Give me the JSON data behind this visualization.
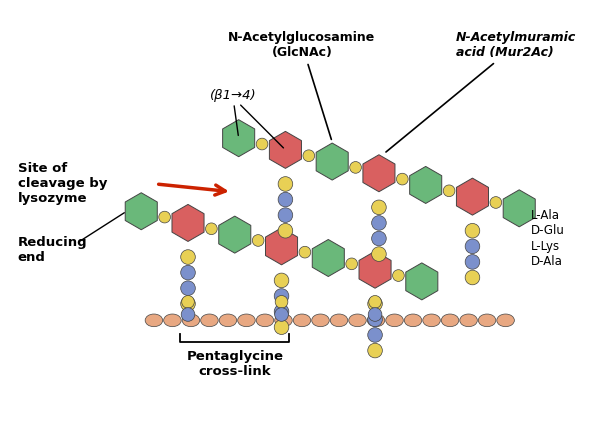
{
  "bg_color": "#ffffff",
  "green_hex": "#6ab87a",
  "red_hex": "#d96060",
  "blue_hex": "#7b90cc",
  "yellow_hex": "#e8d055",
  "salmon_hex": "#e8a882",
  "label_fontsize": 9,
  "bold_fontsize": 10,
  "annotations": {
    "GlcNAc_label": "N-Acetylglucosamine\n(GlcNAc)",
    "MurAc_label": "N-Acetylmuramic\nacid (Mur2Ac)",
    "beta_label": "(β1→4)",
    "site_label": "Site of\ncleavage by\nlysozyme",
    "reducing_end_label": "Reducing\nend",
    "pentaglycine_label": "Pentaglycine\ncross-link",
    "L_Ala": "L-Ala",
    "D_Glu": "D-Glu",
    "L_Lys": "L-Lys",
    "D_Ala": "D-Ala"
  }
}
